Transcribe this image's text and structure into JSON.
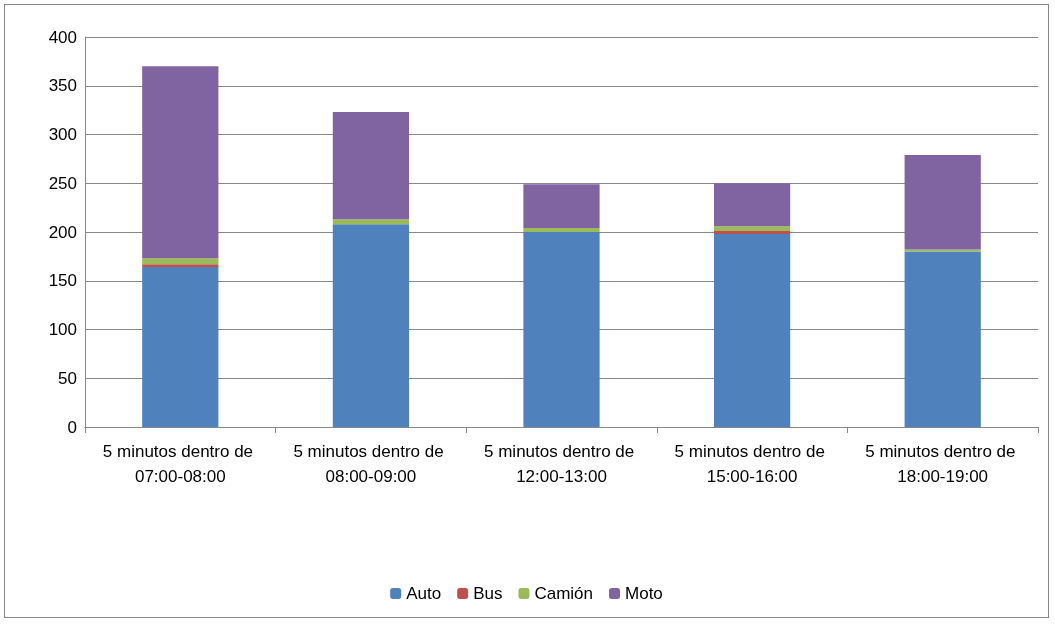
{
  "chart_data": {
    "type": "bar",
    "stacked": true,
    "categories": [
      "5 minutos dentro de 07:00-08:00",
      "5 minutos dentro de 08:00-09:00",
      "5 minutos dentro de 12:00-13:00",
      "5 minutos dentro de 15:00-16:00",
      "5 minutos dentro de 18:00-19:00"
    ],
    "series": [
      {
        "name": "Auto",
        "color": "#4f81bd",
        "values": [
          164,
          208,
          200,
          198,
          180
        ]
      },
      {
        "name": "Bus",
        "color": "#c0504d",
        "values": [
          3,
          0,
          0,
          3,
          0
        ]
      },
      {
        "name": "Camión",
        "color": "#9bbb59",
        "values": [
          6,
          5,
          4,
          5,
          2
        ]
      },
      {
        "name": "Moto",
        "color": "#8064a2",
        "values": [
          197,
          110,
          45,
          44,
          97
        ]
      }
    ],
    "ylim": [
      0,
      400
    ],
    "yticks": [
      0,
      50,
      100,
      150,
      200,
      250,
      300,
      350,
      400
    ],
    "grid": "y",
    "legend": "bottom"
  }
}
